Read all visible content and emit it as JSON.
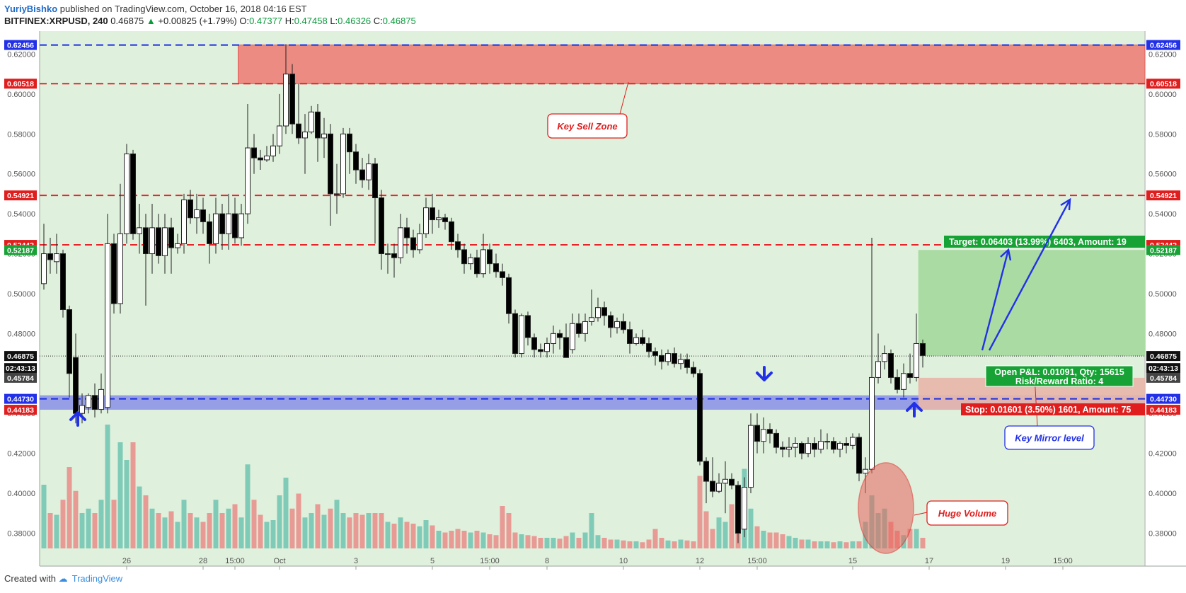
{
  "header": {
    "author": "YuriyBishko",
    "published": "published on TradingView.com, October 16, 2018 04:16 EST"
  },
  "symbol_row": {
    "symbol": "BITFINEX:XRPUSD, 240",
    "last": "0.46875",
    "change": "+0.00825 (+1.79%)",
    "o_label": "O:",
    "o": "0.47377",
    "h_label": "H:",
    "h": "0.47458",
    "l_label": "L:",
    "l": "0.46326",
    "c_label": "C:",
    "c": "0.46875"
  },
  "footer": {
    "created_with": "Created with",
    "brand": "TradingView"
  },
  "colors": {
    "bg": "#dff0dc",
    "sell_zone": "#ec8b82",
    "mirror_band": "#8a90e8",
    "red_line": "#e8242a",
    "blue_line": "#1b2ee0",
    "target_zone": "#a9dba3",
    "stop_zone": "#e8b6aa",
    "vol_up": "#7fcbb8",
    "vol_down": "#e89a95",
    "label_red": "#e01e1e",
    "label_green": "#16a234",
    "label_blue": "#2230e8"
  },
  "chart_data": {
    "type": "candlestick",
    "y_axis": {
      "min": 0.3635,
      "max": 0.6315,
      "ticks": [
        "0.62000",
        "0.60000",
        "0.58000",
        "0.56000",
        "0.54000",
        "0.52000",
        "0.50000",
        "0.48000",
        "0.46000",
        "0.44000",
        "0.42000",
        "0.40000",
        "0.38000"
      ]
    },
    "x_axis": {
      "ticks": [
        {
          "label": "26",
          "i": 13
        },
        {
          "label": "28",
          "i": 25
        },
        {
          "label": "15:00",
          "i": 30
        },
        {
          "label": "Oct",
          "i": 37
        },
        {
          "label": "3",
          "i": 49
        },
        {
          "label": "5",
          "i": 61
        },
        {
          "label": "15:00",
          "i": 70
        },
        {
          "label": "8",
          "i": 79
        },
        {
          "label": "10",
          "i": 91
        },
        {
          "label": "12",
          "i": 103
        },
        {
          "label": "15:00",
          "i": 112
        },
        {
          "label": "15",
          "i": 127
        },
        {
          "label": "17",
          "i": 139
        },
        {
          "label": "19",
          "i": 151
        },
        {
          "label": "15:00",
          "i": 160
        }
      ]
    },
    "candles": [
      [
        0.505,
        0.52,
        0.535,
        0.502,
        72
      ],
      [
        0.52,
        0.517,
        0.528,
        0.51,
        40
      ],
      [
        0.516,
        0.52,
        0.53,
        0.51,
        38
      ],
      [
        0.52,
        0.492,
        0.522,
        0.488,
        55
      ],
      [
        0.492,
        0.46,
        0.494,
        0.448,
        92
      ],
      [
        0.468,
        0.44,
        0.48,
        0.435,
        65
      ],
      [
        0.44,
        0.444,
        0.45,
        0.435,
        40
      ],
      [
        0.443,
        0.449,
        0.45,
        0.44,
        45
      ],
      [
        0.449,
        0.442,
        0.455,
        0.438,
        40
      ],
      [
        0.442,
        0.452,
        0.46,
        0.44,
        55
      ],
      [
        0.443,
        0.525,
        0.54,
        0.44,
        140
      ],
      [
        0.525,
        0.495,
        0.53,
        0.49,
        55
      ],
      [
        0.495,
        0.53,
        0.555,
        0.49,
        120
      ],
      [
        0.53,
        0.57,
        0.575,
        0.525,
        100
      ],
      [
        0.57,
        0.53,
        0.572,
        0.527,
        120
      ],
      [
        0.53,
        0.533,
        0.545,
        0.52,
        70
      ],
      [
        0.533,
        0.52,
        0.54,
        0.494,
        60
      ],
      [
        0.52,
        0.533,
        0.545,
        0.51,
        45
      ],
      [
        0.533,
        0.519,
        0.54,
        0.515,
        40
      ],
      [
        0.519,
        0.533,
        0.54,
        0.51,
        35
      ],
      [
        0.533,
        0.523,
        0.538,
        0.51,
        42
      ],
      [
        0.523,
        0.525,
        0.53,
        0.52,
        30
      ],
      [
        0.525,
        0.547,
        0.55,
        0.52,
        55
      ],
      [
        0.547,
        0.538,
        0.552,
        0.535,
        40
      ],
      [
        0.538,
        0.542,
        0.55,
        0.53,
        35
      ],
      [
        0.542,
        0.536,
        0.548,
        0.53,
        30
      ],
      [
        0.536,
        0.525,
        0.54,
        0.515,
        40
      ],
      [
        0.525,
        0.54,
        0.548,
        0.52,
        55
      ],
      [
        0.54,
        0.53,
        0.545,
        0.522,
        40
      ],
      [
        0.53,
        0.54,
        0.55,
        0.522,
        45
      ],
      [
        0.54,
        0.528,
        0.548,
        0.525,
        50
      ],
      [
        0.528,
        0.54,
        0.545,
        0.524,
        35
      ],
      [
        0.54,
        0.573,
        0.595,
        0.535,
        95
      ],
      [
        0.573,
        0.568,
        0.58,
        0.56,
        55
      ],
      [
        0.568,
        0.567,
        0.572,
        0.562,
        38
      ],
      [
        0.567,
        0.569,
        0.574,
        0.566,
        30
      ],
      [
        0.569,
        0.574,
        0.58,
        0.566,
        32
      ],
      [
        0.574,
        0.584,
        0.6,
        0.57,
        60
      ],
      [
        0.584,
        0.61,
        0.625,
        0.58,
        80
      ],
      [
        0.61,
        0.585,
        0.615,
        0.58,
        45
      ],
      [
        0.585,
        0.578,
        0.605,
        0.575,
        62
      ],
      [
        0.578,
        0.581,
        0.59,
        0.56,
        35
      ],
      [
        0.581,
        0.591,
        0.594,
        0.58,
        40
      ],
      [
        0.591,
        0.578,
        0.595,
        0.566,
        50
      ],
      [
        0.578,
        0.58,
        0.588,
        0.568,
        38
      ],
      [
        0.58,
        0.55,
        0.585,
        0.534,
        45
      ],
      [
        0.55,
        0.55,
        0.565,
        0.54,
        55
      ],
      [
        0.55,
        0.58,
        0.583,
        0.548,
        40
      ],
      [
        0.58,
        0.571,
        0.583,
        0.56,
        35
      ],
      [
        0.571,
        0.562,
        0.575,
        0.555,
        40
      ],
      [
        0.562,
        0.557,
        0.568,
        0.553,
        38
      ],
      [
        0.557,
        0.565,
        0.57,
        0.552,
        40
      ],
      [
        0.565,
        0.548,
        0.568,
        0.525,
        40
      ],
      [
        0.548,
        0.52,
        0.552,
        0.512,
        40
      ],
      [
        0.52,
        0.52,
        0.525,
        0.51,
        30
      ],
      [
        0.52,
        0.518,
        0.525,
        0.508,
        28
      ],
      [
        0.518,
        0.533,
        0.54,
        0.515,
        35
      ],
      [
        0.533,
        0.528,
        0.538,
        0.52,
        30
      ],
      [
        0.528,
        0.522,
        0.532,
        0.518,
        28
      ],
      [
        0.522,
        0.53,
        0.535,
        0.52,
        25
      ],
      [
        0.53,
        0.543,
        0.548,
        0.528,
        32
      ],
      [
        0.543,
        0.537,
        0.55,
        0.53,
        26
      ],
      [
        0.537,
        0.538,
        0.542,
        0.533,
        20
      ],
      [
        0.538,
        0.536,
        0.54,
        0.532,
        18
      ],
      [
        0.536,
        0.526,
        0.538,
        0.522,
        20
      ],
      [
        0.526,
        0.522,
        0.53,
        0.518,
        22
      ],
      [
        0.522,
        0.515,
        0.525,
        0.51,
        20
      ],
      [
        0.515,
        0.518,
        0.52,
        0.512,
        18
      ],
      [
        0.518,
        0.51,
        0.522,
        0.508,
        20
      ],
      [
        0.51,
        0.522,
        0.53,
        0.508,
        18
      ],
      [
        0.522,
        0.515,
        0.525,
        0.51,
        16
      ],
      [
        0.515,
        0.511,
        0.52,
        0.508,
        15
      ],
      [
        0.511,
        0.508,
        0.515,
        0.504,
        48
      ],
      [
        0.508,
        0.49,
        0.51,
        0.485,
        40
      ],
      [
        0.49,
        0.47,
        0.492,
        0.468,
        18
      ],
      [
        0.47,
        0.489,
        0.49,
        0.468,
        16
      ],
      [
        0.489,
        0.478,
        0.491,
        0.474,
        15
      ],
      [
        0.478,
        0.472,
        0.48,
        0.468,
        14
      ],
      [
        0.472,
        0.471,
        0.475,
        0.468,
        12
      ],
      [
        0.471,
        0.475,
        0.478,
        0.468,
        12
      ],
      [
        0.475,
        0.48,
        0.484,
        0.47,
        12
      ],
      [
        0.48,
        0.478,
        0.482,
        0.472,
        11
      ],
      [
        0.478,
        0.468,
        0.485,
        0.468,
        14
      ],
      [
        0.472,
        0.485,
        0.49,
        0.47,
        18
      ],
      [
        0.485,
        0.48,
        0.49,
        0.478,
        12
      ],
      [
        0.48,
        0.486,
        0.49,
        0.476,
        18
      ],
      [
        0.486,
        0.488,
        0.502,
        0.484,
        40
      ],
      [
        0.488,
        0.493,
        0.498,
        0.486,
        15
      ],
      [
        0.493,
        0.489,
        0.496,
        0.484,
        12
      ],
      [
        0.489,
        0.483,
        0.491,
        0.478,
        10
      ],
      [
        0.483,
        0.486,
        0.488,
        0.48,
        10
      ],
      [
        0.486,
        0.482,
        0.49,
        0.48,
        9
      ],
      [
        0.482,
        0.475,
        0.486,
        0.47,
        8
      ],
      [
        0.475,
        0.478,
        0.48,
        0.474,
        8
      ],
      [
        0.478,
        0.475,
        0.482,
        0.474,
        7
      ],
      [
        0.475,
        0.471,
        0.478,
        0.468,
        10
      ],
      [
        0.471,
        0.469,
        0.473,
        0.464,
        22
      ],
      [
        0.469,
        0.466,
        0.472,
        0.462,
        12
      ],
      [
        0.466,
        0.47,
        0.472,
        0.464,
        9
      ],
      [
        0.47,
        0.465,
        0.473,
        0.463,
        8
      ],
      [
        0.465,
        0.467,
        0.47,
        0.462,
        10
      ],
      [
        0.467,
        0.463,
        0.47,
        0.46,
        9
      ],
      [
        0.463,
        0.46,
        0.466,
        0.458,
        8
      ],
      [
        0.46,
        0.416,
        0.462,
        0.414,
        82
      ],
      [
        0.416,
        0.406,
        0.418,
        0.395,
        42
      ],
      [
        0.406,
        0.401,
        0.418,
        0.398,
        22
      ],
      [
        0.401,
        0.405,
        0.41,
        0.4,
        35
      ],
      [
        0.405,
        0.407,
        0.416,
        0.39,
        30
      ],
      [
        0.407,
        0.404,
        0.41,
        0.402,
        50
      ],
      [
        0.404,
        0.38,
        0.406,
        0.375,
        35
      ],
      [
        0.382,
        0.403,
        0.408,
        0.378,
        90
      ],
      [
        0.403,
        0.434,
        0.44,
        0.4,
        45
      ],
      [
        0.434,
        0.426,
        0.44,
        0.42,
        25
      ],
      [
        0.426,
        0.432,
        0.438,
        0.42,
        20
      ],
      [
        0.432,
        0.43,
        0.435,
        0.425,
        18
      ],
      [
        0.43,
        0.423,
        0.432,
        0.42,
        18
      ],
      [
        0.423,
        0.422,
        0.426,
        0.418,
        16
      ],
      [
        0.422,
        0.423,
        0.428,
        0.418,
        14
      ],
      [
        0.423,
        0.425,
        0.428,
        0.418,
        12
      ],
      [
        0.425,
        0.42,
        0.426,
        0.417,
        10
      ],
      [
        0.42,
        0.425,
        0.428,
        0.418,
        10
      ],
      [
        0.425,
        0.422,
        0.428,
        0.418,
        8
      ],
      [
        0.422,
        0.426,
        0.432,
        0.42,
        8
      ],
      [
        0.426,
        0.426,
        0.43,
        0.422,
        8
      ],
      [
        0.426,
        0.422,
        0.428,
        0.42,
        7
      ],
      [
        0.422,
        0.425,
        0.426,
        0.418,
        8
      ],
      [
        0.425,
        0.424,
        0.428,
        0.42,
        7
      ],
      [
        0.424,
        0.428,
        0.43,
        0.422,
        8
      ],
      [
        0.428,
        0.41,
        0.43,
        0.406,
        8
      ],
      [
        0.41,
        0.412,
        0.418,
        0.4,
        30
      ],
      [
        0.412,
        0.458,
        0.528,
        0.41,
        60
      ],
      [
        0.458,
        0.466,
        0.48,
        0.455,
        40
      ],
      [
        0.466,
        0.47,
        0.474,
        0.462,
        45
      ],
      [
        0.47,
        0.458,
        0.472,
        0.455,
        30
      ],
      [
        0.458,
        0.452,
        0.462,
        0.45,
        20
      ],
      [
        0.452,
        0.46,
        0.465,
        0.448,
        15
      ],
      [
        0.46,
        0.458,
        0.47,
        0.455,
        22
      ],
      [
        0.458,
        0.475,
        0.49,
        0.456,
        22
      ],
      [
        0.475,
        0.469,
        0.477,
        0.463,
        12
      ]
    ],
    "levels": [
      {
        "value": 0.62456,
        "label": "0.62456",
        "color": "blue",
        "dashed": true
      },
      {
        "value": 0.60518,
        "label": "0.60518",
        "color": "red",
        "dashed": true
      },
      {
        "value": 0.54921,
        "label": "0.54921",
        "color": "red",
        "dashed": true
      },
      {
        "value": 0.52442,
        "label": "0.52442",
        "color": "red",
        "dashed": true
      },
      {
        "value": 0.4473,
        "label": "0.44730",
        "color": "blue",
        "dashed": true
      }
    ],
    "price_tags": [
      {
        "value": 0.62456,
        "label": "0.62456",
        "bg": "#2230e8"
      },
      {
        "value": 0.60518,
        "label": "0.60518",
        "bg": "#e01e1e"
      },
      {
        "value": 0.54921,
        "label": "0.54921",
        "bg": "#e01e1e"
      },
      {
        "value": 0.52442,
        "label": "0.52442",
        "bg": "#e01e1e"
      },
      {
        "value": 0.52187,
        "label": "0.52187",
        "bg": "#16a234"
      },
      {
        "value": 0.46875,
        "label": "0.46875",
        "bg": "#111111"
      },
      {
        "value": 0.4627,
        "label": "02:43:13",
        "bg": "#111111"
      },
      {
        "value": 0.45784,
        "label": "0.45784",
        "bg": "#444444"
      },
      {
        "value": 0.4473,
        "label": "0.44730",
        "bg": "#2230e8"
      },
      {
        "value": 0.44183,
        "label": "0.44183",
        "bg": "#e01e1e"
      }
    ],
    "zones": {
      "sell_zone": {
        "from": 0.60518,
        "to": 0.62456,
        "start_i": 30.5
      },
      "mirror_band": {
        "from": 0.44183,
        "to": 0.4473
      },
      "target_zone": {
        "from": 0.46875,
        "to": 0.52187,
        "start_i": 137.3
      },
      "stop_zone": {
        "from": 0.44183,
        "to": 0.45784,
        "start_i": 137.3
      }
    },
    "annotations": {
      "key_sell_zone": "Key Sell Zone",
      "key_mirror_level": "Key Mirror level",
      "huge_volume": "Huge Volume",
      "target": "Target: 0.06403 (13.99%) 6403, Amount: 19",
      "open_pnl": "Open P&L: 0.01091, Qty: 15615",
      "risk_reward": "Risk/Reward Ratio: 4",
      "stop": "Stop: 0.01601 (3.50%) 1601, Amount: 75"
    },
    "last_price": 0.46875
  }
}
